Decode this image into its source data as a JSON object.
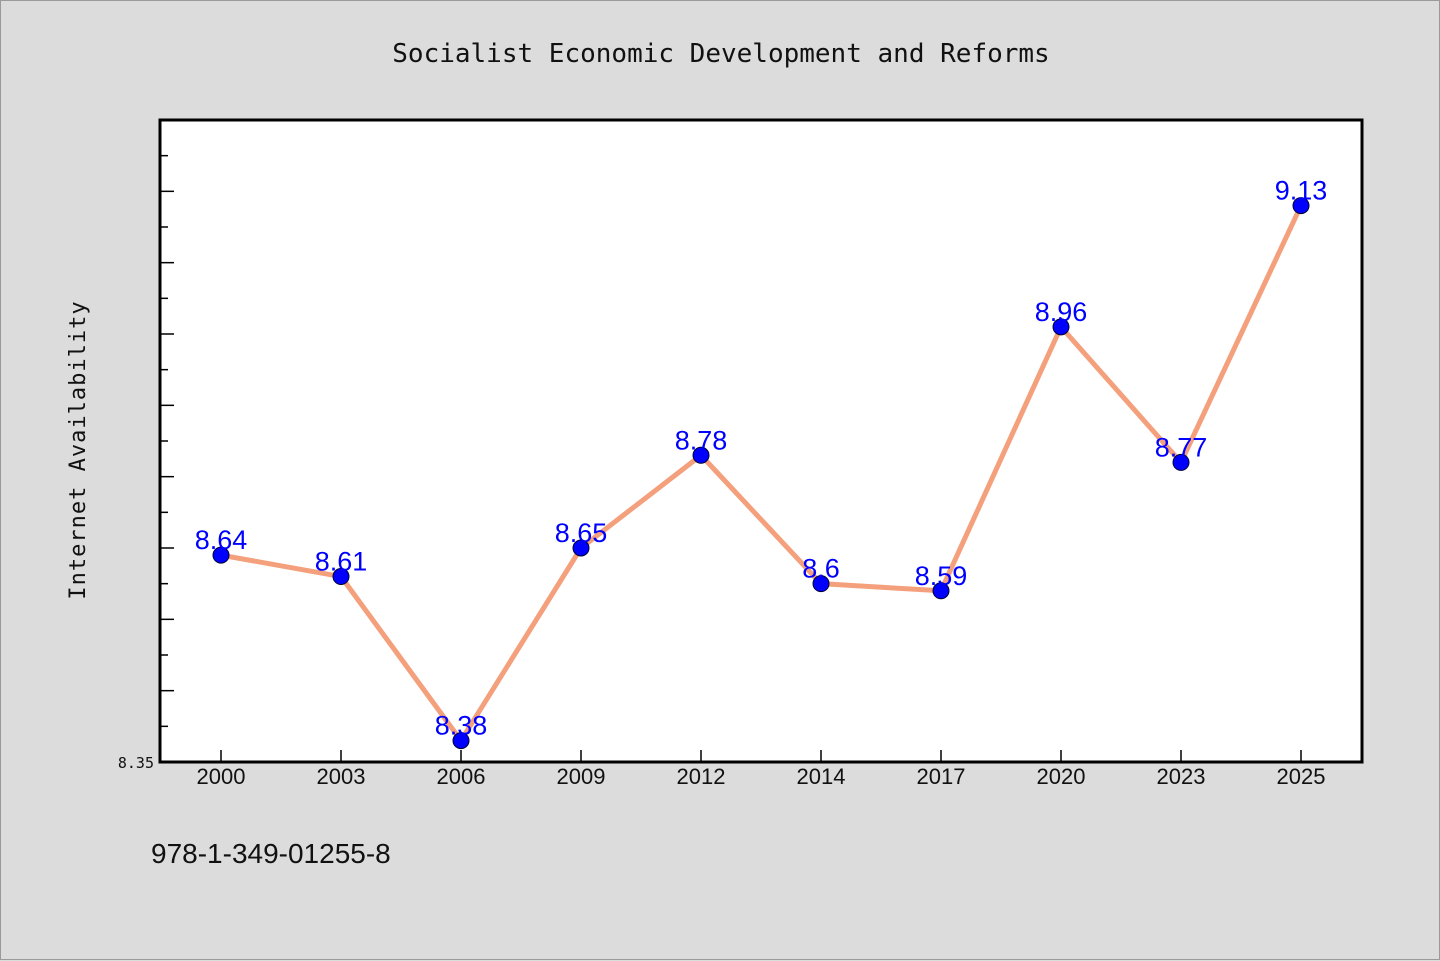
{
  "chart_data": {
    "type": "line",
    "title": "Socialist Economic Development and Reforms",
    "ylabel": "Internet Availability",
    "xlabel": "",
    "categories": [
      "2000",
      "2003",
      "2006",
      "2009",
      "2012",
      "2014",
      "2017",
      "2020",
      "2023",
      "2025"
    ],
    "values": [
      8.64,
      8.61,
      8.38,
      8.65,
      8.78,
      8.6,
      8.59,
      8.96,
      8.77,
      9.13
    ],
    "data_labels": [
      "8.64",
      "8.61",
      "8.38",
      "8.65",
      "8.78",
      "8.6",
      "8.59",
      "8.96",
      "8.77",
      "9.13"
    ],
    "ylim": [
      8.35,
      9.25
    ],
    "y_tick_labels": [
      "8.35"
    ],
    "grid": false,
    "legend": "none",
    "colors": {
      "line": "#f4a07c",
      "marker": "#0000ff",
      "label": "#0000ff",
      "background": "#dcdcdc",
      "plot_background": "#ffffff"
    }
  },
  "footer": {
    "text": "978-1-349-01255-8"
  }
}
